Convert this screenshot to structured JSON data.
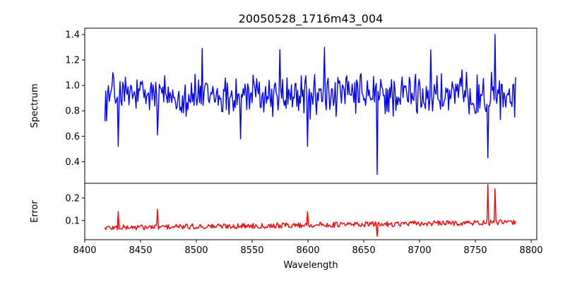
{
  "chart_data": [
    {
      "type": "line",
      "title": "20050528_1716m43_004",
      "xlabel": "",
      "ylabel": "Spectrum",
      "xlim": [
        8400,
        8805
      ],
      "ylim": [
        0.23,
        1.45
      ],
      "yticks": [
        0.4,
        0.6,
        0.8,
        1.0,
        1.2,
        1.4
      ],
      "ytick_labels": [
        "0.4",
        "0.6",
        "0.8",
        "1.0",
        "1.2",
        "1.4"
      ],
      "series": [
        {
          "color": "#0000ff",
          "x_start": 8418,
          "x_step": 0.8,
          "n_points": 461,
          "base": 0.92,
          "noise_amplitude": 0.13,
          "notable_points": [
            {
              "x": 8420,
              "y": 0.72
            },
            {
              "x": 8425,
              "y": 1.1
            },
            {
              "x": 8430,
              "y": 0.52
            },
            {
              "x": 8465,
              "y": 0.61
            },
            {
              "x": 8505,
              "y": 1.29
            },
            {
              "x": 8540,
              "y": 0.58
            },
            {
              "x": 8575,
              "y": 1.28
            },
            {
              "x": 8600,
              "y": 0.52
            },
            {
              "x": 8615,
              "y": 1.3
            },
            {
              "x": 8662,
              "y": 0.3
            },
            {
              "x": 8710,
              "y": 1.28
            },
            {
              "x": 8761,
              "y": 0.43
            },
            {
              "x": 8768,
              "y": 1.4
            },
            {
              "x": 8785,
              "y": 0.75
            }
          ]
        }
      ]
    },
    {
      "type": "line",
      "title": "",
      "xlabel": "Wavelength",
      "ylabel": "Error",
      "xlim": [
        8400,
        8805
      ],
      "ylim": [
        0.015,
        0.265
      ],
      "yticks": [
        0.1,
        0.2
      ],
      "ytick_labels": [
        "0.1",
        "0.2"
      ],
      "xticks": [
        8400,
        8450,
        8500,
        8550,
        8600,
        8650,
        8700,
        8750,
        8800
      ],
      "xtick_labels": [
        "8400",
        "8450",
        "8500",
        "8550",
        "8600",
        "8650",
        "8700",
        "8750",
        "8800"
      ],
      "series": [
        {
          "color": "#ff0000",
          "x_start": 8418,
          "x_step": 0.8,
          "n_points": 461,
          "baseline_start": 0.068,
          "baseline_end": 0.092,
          "noise_amplitude": 0.012,
          "notable_points": [
            {
              "x": 8430,
              "y": 0.14
            },
            {
              "x": 8465,
              "y": 0.15
            },
            {
              "x": 8600,
              "y": 0.14
            },
            {
              "x": 8662,
              "y": 0.03
            },
            {
              "x": 8761,
              "y": 0.26
            },
            {
              "x": 8768,
              "y": 0.24
            }
          ]
        }
      ]
    }
  ]
}
